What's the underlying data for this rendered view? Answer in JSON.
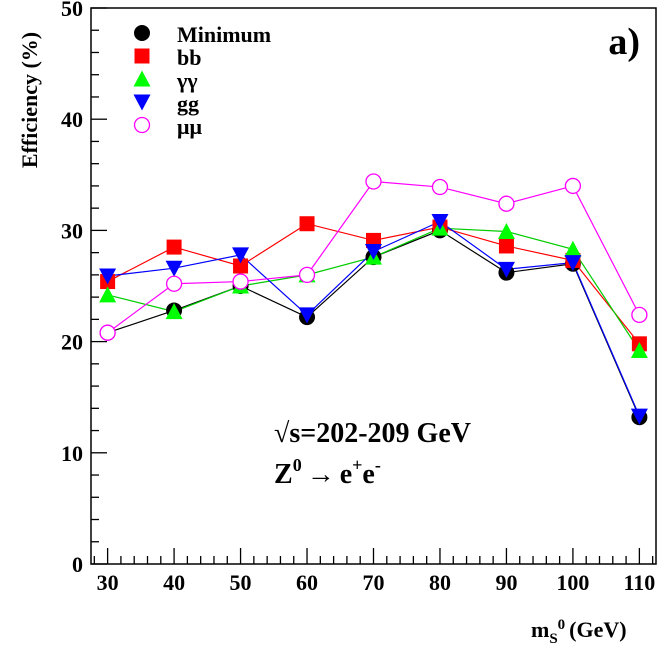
{
  "chart_data": {
    "type": "line",
    "panel_label": "a)",
    "ylabel": "Efficiency (%)",
    "xlabel_main": "m",
    "xlabel_sub": "S",
    "xlabel_sup": "0",
    "xlabel_unit": "(GeV)",
    "x": [
      30,
      40,
      50,
      60,
      70,
      80,
      90,
      100,
      110
    ],
    "xlim": [
      27.5,
      112.5
    ],
    "ylim": [
      0,
      50
    ],
    "xticks": [
      30,
      40,
      50,
      60,
      70,
      80,
      90,
      100,
      110
    ],
    "yticks": [
      0,
      10,
      20,
      30,
      40,
      50
    ],
    "legend_position": "top-left",
    "annotation_line1": "√s=202-209 GeV",
    "annotation_z": "Z",
    "annotation_z_sup": "0",
    "annotation_arrow": "→",
    "annotation_e1": "e",
    "annotation_e1_sup": "+",
    "annotation_e2": "e",
    "annotation_e2_sup": "-",
    "series": [
      {
        "name": "Minimum",
        "marker": "circle",
        "fill": "#000000",
        "stroke": "#000000",
        "line": "#000000",
        "values": [
          20.8,
          22.8,
          25.0,
          22.2,
          27.6,
          30.0,
          26.2,
          27.0,
          13.2
        ]
      },
      {
        "name": "bb",
        "marker": "square",
        "fill": "#ff0000",
        "stroke": "#ff0000",
        "line": "#ff0000",
        "values": [
          25.4,
          28.5,
          26.8,
          30.6,
          29.1,
          30.3,
          28.6,
          27.3,
          19.8
        ]
      },
      {
        "name": "γγ",
        "marker": "triangle-up",
        "fill": "#00ff00",
        "stroke": "#00ff00",
        "line": "#00cc00",
        "values": [
          24.2,
          22.7,
          25.0,
          26.0,
          27.6,
          30.2,
          29.9,
          28.3,
          19.2
        ]
      },
      {
        "name": "gg",
        "marker": "triangle-down",
        "fill": "#0000ff",
        "stroke": "#0000ff",
        "line": "#0000ff",
        "values": [
          25.9,
          26.6,
          27.8,
          22.4,
          28.1,
          30.8,
          26.5,
          27.1,
          13.3
        ]
      },
      {
        "name": "μμ",
        "marker": "open-circle",
        "fill": "none",
        "stroke": "#ff00ff",
        "line": "#ff00ff",
        "values": [
          20.8,
          25.2,
          25.4,
          26.0,
          34.4,
          33.9,
          32.4,
          34.0,
          22.4
        ]
      }
    ]
  }
}
